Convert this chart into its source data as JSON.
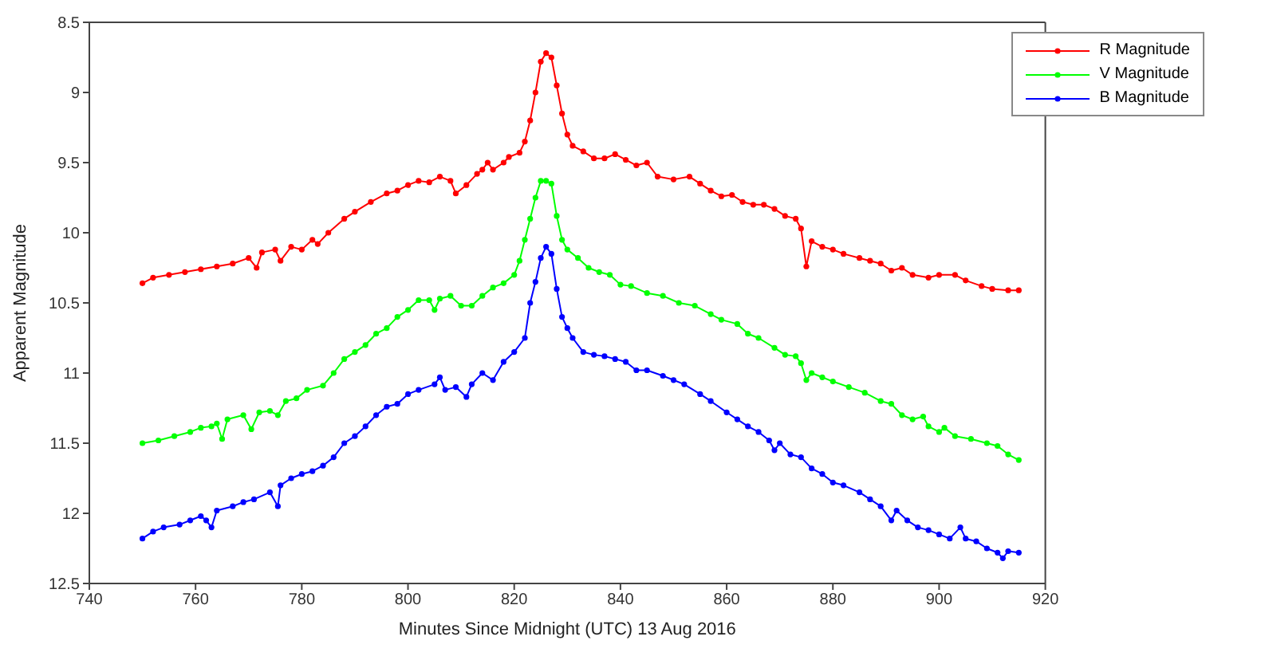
{
  "chart_data": {
    "type": "line",
    "xlabel": "Minutes Since Midnight (UTC) 13 Aug 2016",
    "ylabel": "Apparent Magnitude",
    "xlim": [
      740,
      920
    ],
    "xticks": [
      740,
      760,
      780,
      800,
      820,
      840,
      860,
      880,
      900,
      920
    ],
    "ylim": [
      12.5,
      8.5
    ],
    "yticks": [
      8.5,
      9,
      9.5,
      10,
      10.5,
      11,
      11.5,
      12,
      12.5
    ],
    "grid": false,
    "legend": "top right",
    "marker": "circle",
    "line_style": "solid",
    "series": [
      {
        "name": "R Magnitude",
        "color": "#ff0000",
        "x": [
          750,
          752,
          755,
          758,
          761,
          764,
          767,
          770,
          771.5,
          772.5,
          775,
          776,
          778,
          780,
          782,
          783,
          785,
          788,
          790,
          793,
          796,
          798,
          800,
          802,
          804,
          806,
          808,
          809,
          811,
          813,
          814,
          815,
          816,
          818,
          819,
          821,
          822,
          823,
          824,
          825,
          826,
          827,
          828,
          829,
          830,
          831,
          833,
          835,
          837,
          839,
          841,
          843,
          845,
          847,
          850,
          853,
          855,
          857,
          859,
          861,
          863,
          865,
          867,
          869,
          871,
          873,
          874,
          875,
          876,
          878,
          880,
          882,
          885,
          887,
          889,
          891,
          893,
          895,
          898,
          900,
          903,
          905,
          908,
          910,
          913,
          915
        ],
        "values": [
          10.36,
          10.32,
          10.3,
          10.28,
          10.26,
          10.24,
          10.22,
          10.18,
          10.25,
          10.14,
          10.12,
          10.2,
          10.1,
          10.12,
          10.05,
          10.08,
          10.0,
          9.9,
          9.85,
          9.78,
          9.72,
          9.7,
          9.66,
          9.63,
          9.64,
          9.6,
          9.63,
          9.72,
          9.66,
          9.58,
          9.55,
          9.5,
          9.55,
          9.5,
          9.46,
          9.43,
          9.35,
          9.2,
          9.0,
          8.78,
          8.72,
          8.75,
          8.95,
          9.15,
          9.3,
          9.38,
          9.42,
          9.47,
          9.47,
          9.44,
          9.48,
          9.52,
          9.5,
          9.6,
          9.62,
          9.6,
          9.65,
          9.7,
          9.74,
          9.73,
          9.78,
          9.8,
          9.8,
          9.83,
          9.88,
          9.9,
          9.97,
          10.24,
          10.06,
          10.1,
          10.12,
          10.15,
          10.18,
          10.2,
          10.22,
          10.27,
          10.25,
          10.3,
          10.32,
          10.3,
          10.3,
          10.34,
          10.38,
          10.4,
          10.41,
          10.41
        ]
      },
      {
        "name": "V Magnitude",
        "color": "#00ff00",
        "x": [
          750,
          753,
          756,
          759,
          761,
          763,
          764,
          765,
          766,
          769,
          770.5,
          772,
          774,
          775.5,
          777,
          779,
          781,
          784,
          786,
          788,
          790,
          792,
          794,
          796,
          798,
          800,
          802,
          804,
          805,
          806,
          808,
          810,
          812,
          814,
          816,
          818,
          820,
          821,
          822,
          823,
          824,
          825,
          826,
          827,
          828,
          829,
          830,
          832,
          834,
          836,
          838,
          840,
          842,
          845,
          848,
          851,
          854,
          857,
          859,
          862,
          864,
          866,
          869,
          871,
          873,
          874,
          875,
          876,
          878,
          880,
          883,
          886,
          889,
          891,
          893,
          895,
          897,
          898,
          900,
          901,
          903,
          906,
          909,
          911,
          913,
          915
        ],
        "values": [
          11.5,
          11.48,
          11.45,
          11.42,
          11.39,
          11.38,
          11.36,
          11.47,
          11.33,
          11.3,
          11.4,
          11.28,
          11.27,
          11.3,
          11.2,
          11.18,
          11.12,
          11.09,
          11.0,
          10.9,
          10.85,
          10.8,
          10.72,
          10.68,
          10.6,
          10.55,
          10.48,
          10.48,
          10.55,
          10.47,
          10.45,
          10.52,
          10.52,
          10.45,
          10.39,
          10.36,
          10.3,
          10.2,
          10.05,
          9.9,
          9.75,
          9.63,
          9.63,
          9.65,
          9.88,
          10.05,
          10.12,
          10.18,
          10.25,
          10.28,
          10.3,
          10.37,
          10.38,
          10.43,
          10.45,
          10.5,
          10.52,
          10.58,
          10.62,
          10.65,
          10.72,
          10.75,
          10.82,
          10.87,
          10.88,
          10.93,
          11.05,
          11.0,
          11.03,
          11.06,
          11.1,
          11.14,
          11.2,
          11.22,
          11.3,
          11.33,
          11.31,
          11.38,
          11.42,
          11.39,
          11.45,
          11.47,
          11.5,
          11.52,
          11.58,
          11.62
        ]
      },
      {
        "name": "B Magnitude",
        "color": "#0000ff",
        "x": [
          750,
          752,
          754,
          757,
          759,
          761,
          762,
          763,
          764,
          767,
          769,
          771,
          774,
          775.5,
          776,
          778,
          780,
          782,
          784,
          786,
          788,
          790,
          792,
          794,
          796,
          798,
          800,
          802,
          805,
          806,
          807,
          809,
          811,
          812,
          814,
          816,
          818,
          820,
          822,
          823,
          824,
          825,
          826,
          827,
          828,
          829,
          830,
          831,
          833,
          835,
          837,
          839,
          841,
          843,
          845,
          848,
          850,
          852,
          855,
          857,
          860,
          862,
          864,
          866,
          868,
          869,
          870,
          872,
          874,
          876,
          878,
          880,
          882,
          885,
          887,
          889,
          891,
          892,
          894,
          896,
          898,
          900,
          902,
          904,
          905,
          907,
          909,
          911,
          912,
          913,
          915
        ],
        "values": [
          12.18,
          12.13,
          12.1,
          12.08,
          12.05,
          12.02,
          12.05,
          12.1,
          11.98,
          11.95,
          11.92,
          11.9,
          11.85,
          11.95,
          11.8,
          11.75,
          11.72,
          11.7,
          11.66,
          11.6,
          11.5,
          11.45,
          11.38,
          11.3,
          11.24,
          11.22,
          11.15,
          11.12,
          11.08,
          11.03,
          11.12,
          11.1,
          11.17,
          11.08,
          11.0,
          11.05,
          10.92,
          10.85,
          10.75,
          10.5,
          10.35,
          10.18,
          10.1,
          10.15,
          10.4,
          10.6,
          10.68,
          10.75,
          10.85,
          10.87,
          10.88,
          10.9,
          10.92,
          10.98,
          10.98,
          11.02,
          11.05,
          11.08,
          11.15,
          11.2,
          11.28,
          11.33,
          11.38,
          11.42,
          11.48,
          11.55,
          11.5,
          11.58,
          11.6,
          11.68,
          11.72,
          11.78,
          11.8,
          11.85,
          11.9,
          11.95,
          12.05,
          11.98,
          12.05,
          12.1,
          12.12,
          12.15,
          12.18,
          12.1,
          12.18,
          12.2,
          12.25,
          12.28,
          12.32,
          12.27,
          12.28
        ]
      }
    ]
  }
}
